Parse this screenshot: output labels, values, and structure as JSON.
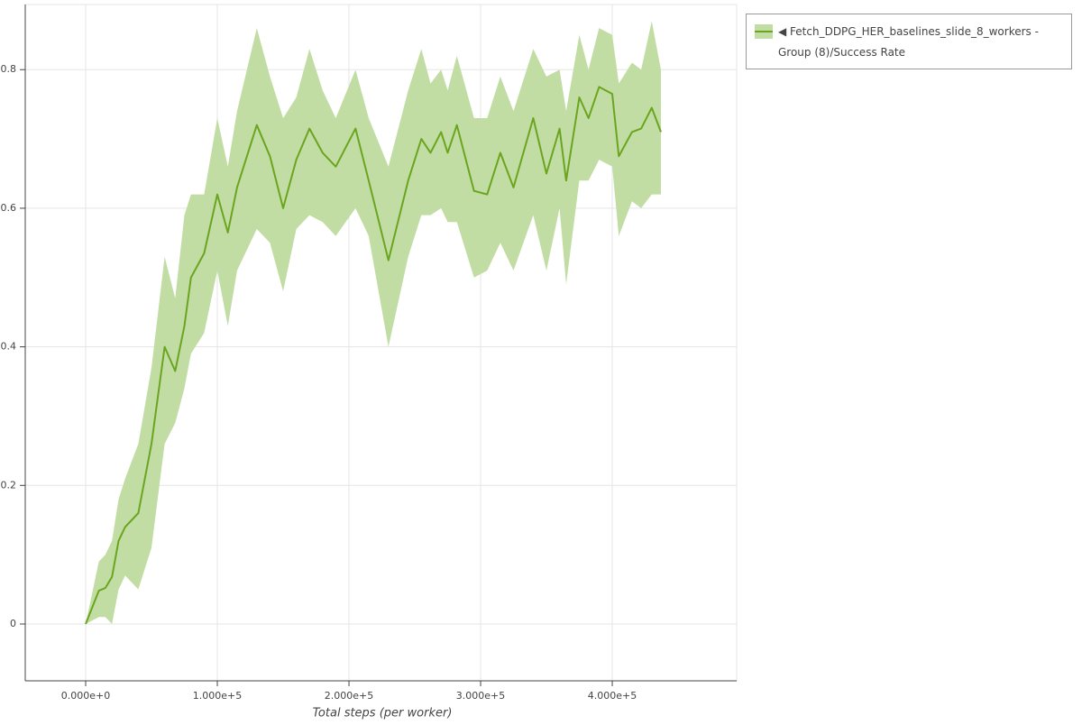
{
  "chart_data": {
    "type": "line-band",
    "x_label": "Total steps (per worker)",
    "xlim": [
      -45900,
      494500
    ],
    "xticks": [
      {
        "value": 0,
        "label": "0.000e+0"
      },
      {
        "value": 100000,
        "label": "1.000e+5"
      },
      {
        "value": 200000,
        "label": "2.000e+5"
      },
      {
        "value": 300000,
        "label": "3.000e+5"
      },
      {
        "value": 400000,
        "label": "4.000e+5"
      }
    ],
    "ylim": [
      -0.082,
      0.894
    ],
    "yticks": [
      0,
      0.2,
      0.4,
      0.6,
      0.8
    ],
    "grid": true,
    "legend": "top-right",
    "x": [
      0,
      10000,
      15000,
      20000,
      25000,
      30000,
      40000,
      50000,
      60000,
      68000,
      75000,
      80000,
      90000,
      100000,
      108000,
      115000,
      130000,
      140000,
      150000,
      160000,
      170000,
      180000,
      190000,
      205000,
      215000,
      230000,
      245000,
      255000,
      262000,
      270000,
      275000,
      282000,
      295000,
      305000,
      315000,
      325000,
      340000,
      350000,
      360000,
      365000,
      375000,
      382000,
      390000,
      400000,
      405000,
      415000,
      422000,
      430000,
      437000
    ],
    "series": [
      {
        "name": "◀ Fetch_DDPG_HER_baselines_slide_8_workers - Group (8)/Success Rate",
        "color": "#6aa51e",
        "band_color": "#c2dda4",
        "values": [
          0,
          0.048,
          0.052,
          0.068,
          0.12,
          0.14,
          0.16,
          0.26,
          0.4,
          0.365,
          0.43,
          0.5,
          0.535,
          0.62,
          0.565,
          0.63,
          0.72,
          0.675,
          0.6,
          0.67,
          0.715,
          0.68,
          0.66,
          0.715,
          0.64,
          0.525,
          0.64,
          0.7,
          0.68,
          0.71,
          0.68,
          0.72,
          0.625,
          0.62,
          0.68,
          0.63,
          0.73,
          0.65,
          0.715,
          0.64,
          0.76,
          0.73,
          0.775,
          0.765,
          0.675,
          0.71,
          0.715,
          0.745,
          0.71
        ],
        "upper": [
          0,
          0.09,
          0.1,
          0.12,
          0.18,
          0.21,
          0.26,
          0.37,
          0.53,
          0.47,
          0.59,
          0.62,
          0.62,
          0.73,
          0.66,
          0.74,
          0.86,
          0.79,
          0.73,
          0.76,
          0.83,
          0.77,
          0.73,
          0.8,
          0.73,
          0.66,
          0.77,
          0.83,
          0.78,
          0.8,
          0.77,
          0.82,
          0.73,
          0.73,
          0.79,
          0.74,
          0.83,
          0.79,
          0.8,
          0.74,
          0.85,
          0.8,
          0.86,
          0.85,
          0.78,
          0.81,
          0.8,
          0.87,
          0.8
        ],
        "lower": [
          0,
          0.01,
          0.01,
          0.0,
          0.05,
          0.07,
          0.05,
          0.11,
          0.26,
          0.29,
          0.34,
          0.39,
          0.42,
          0.51,
          0.43,
          0.51,
          0.57,
          0.55,
          0.48,
          0.57,
          0.59,
          0.58,
          0.56,
          0.6,
          0.56,
          0.4,
          0.53,
          0.59,
          0.59,
          0.6,
          0.58,
          0.58,
          0.5,
          0.51,
          0.55,
          0.51,
          0.59,
          0.51,
          0.6,
          0.49,
          0.64,
          0.64,
          0.67,
          0.66,
          0.56,
          0.61,
          0.6,
          0.62,
          0.62
        ]
      }
    ]
  }
}
